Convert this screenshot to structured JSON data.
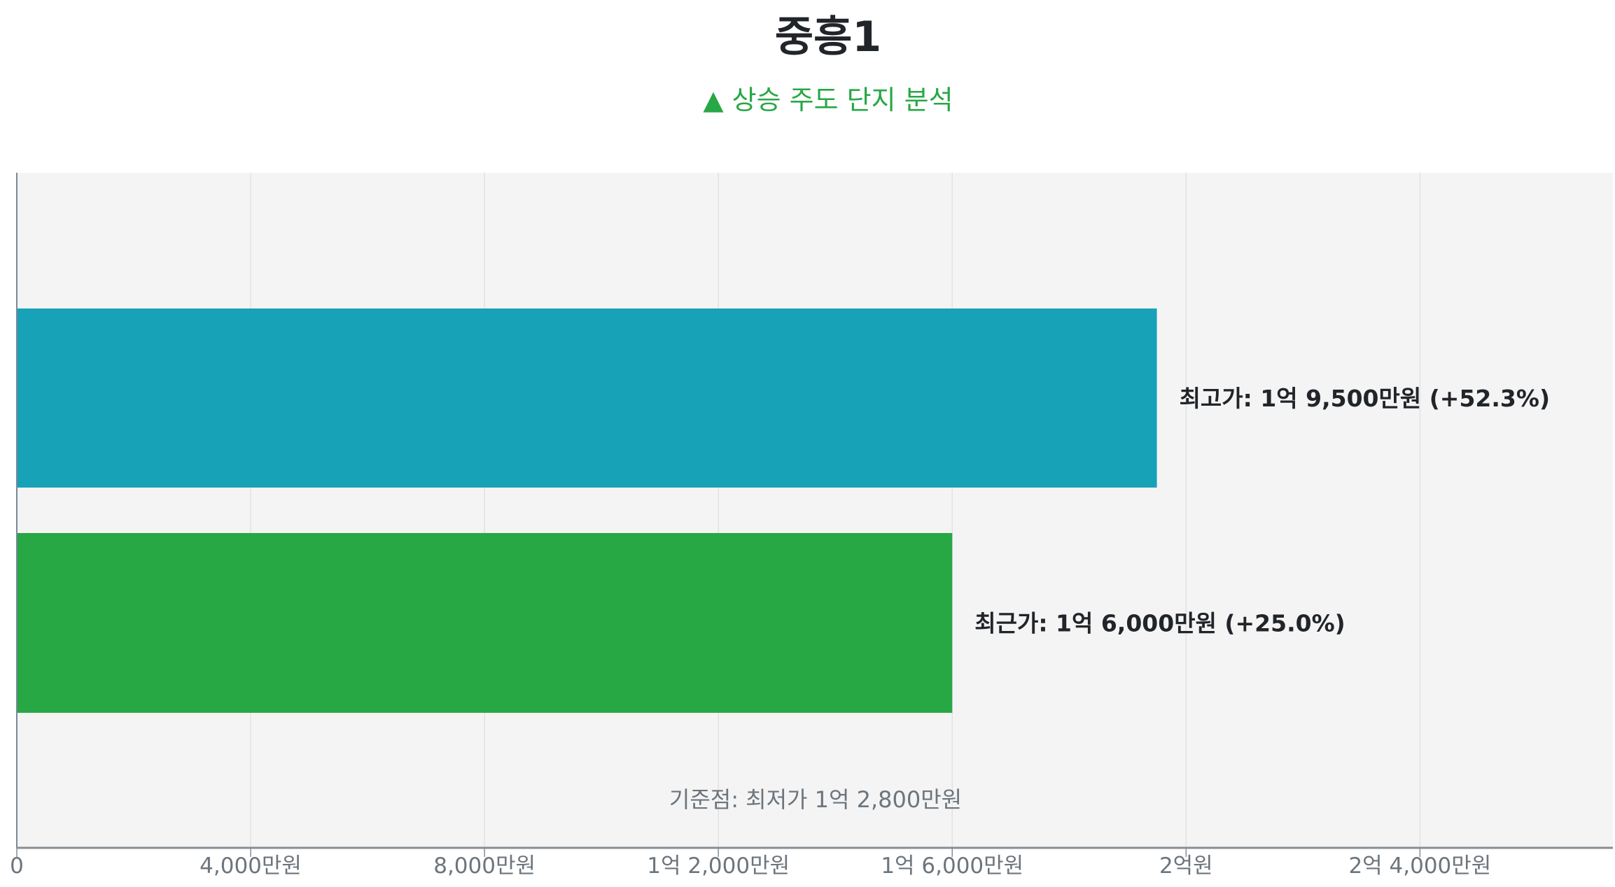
{
  "chart_data": {
    "type": "bar",
    "orientation": "horizontal",
    "title": "중흥1",
    "subtitle": "▲ 상승 주도 단지 분석",
    "subtitle_color": "#28a745",
    "categories": [
      "최고가",
      "최근가"
    ],
    "values": [
      19500,
      16000
    ],
    "unit": "만원",
    "colors": [
      "#17a2b8",
      "#28a745"
    ],
    "bar_labels": [
      "최고가: 1억 9,500만원 (+52.3%)",
      "최근가: 1억 6,000만원 (+25.0%)"
    ],
    "annotation": "기준점: 최저가 1억 2,800만원",
    "baseline_value": 12800,
    "xlim": [
      0,
      27300
    ],
    "x_ticks": [
      0,
      4000,
      8000,
      12000,
      16000,
      20000,
      24000
    ],
    "x_tick_labels": [
      "0",
      "4,000만원",
      "8,000만원",
      "1억 2,000만원",
      "1억 6,000만원",
      "2억원",
      "2억 4,000만원"
    ],
    "grid": true,
    "plot_background": "#f4f4f4"
  }
}
